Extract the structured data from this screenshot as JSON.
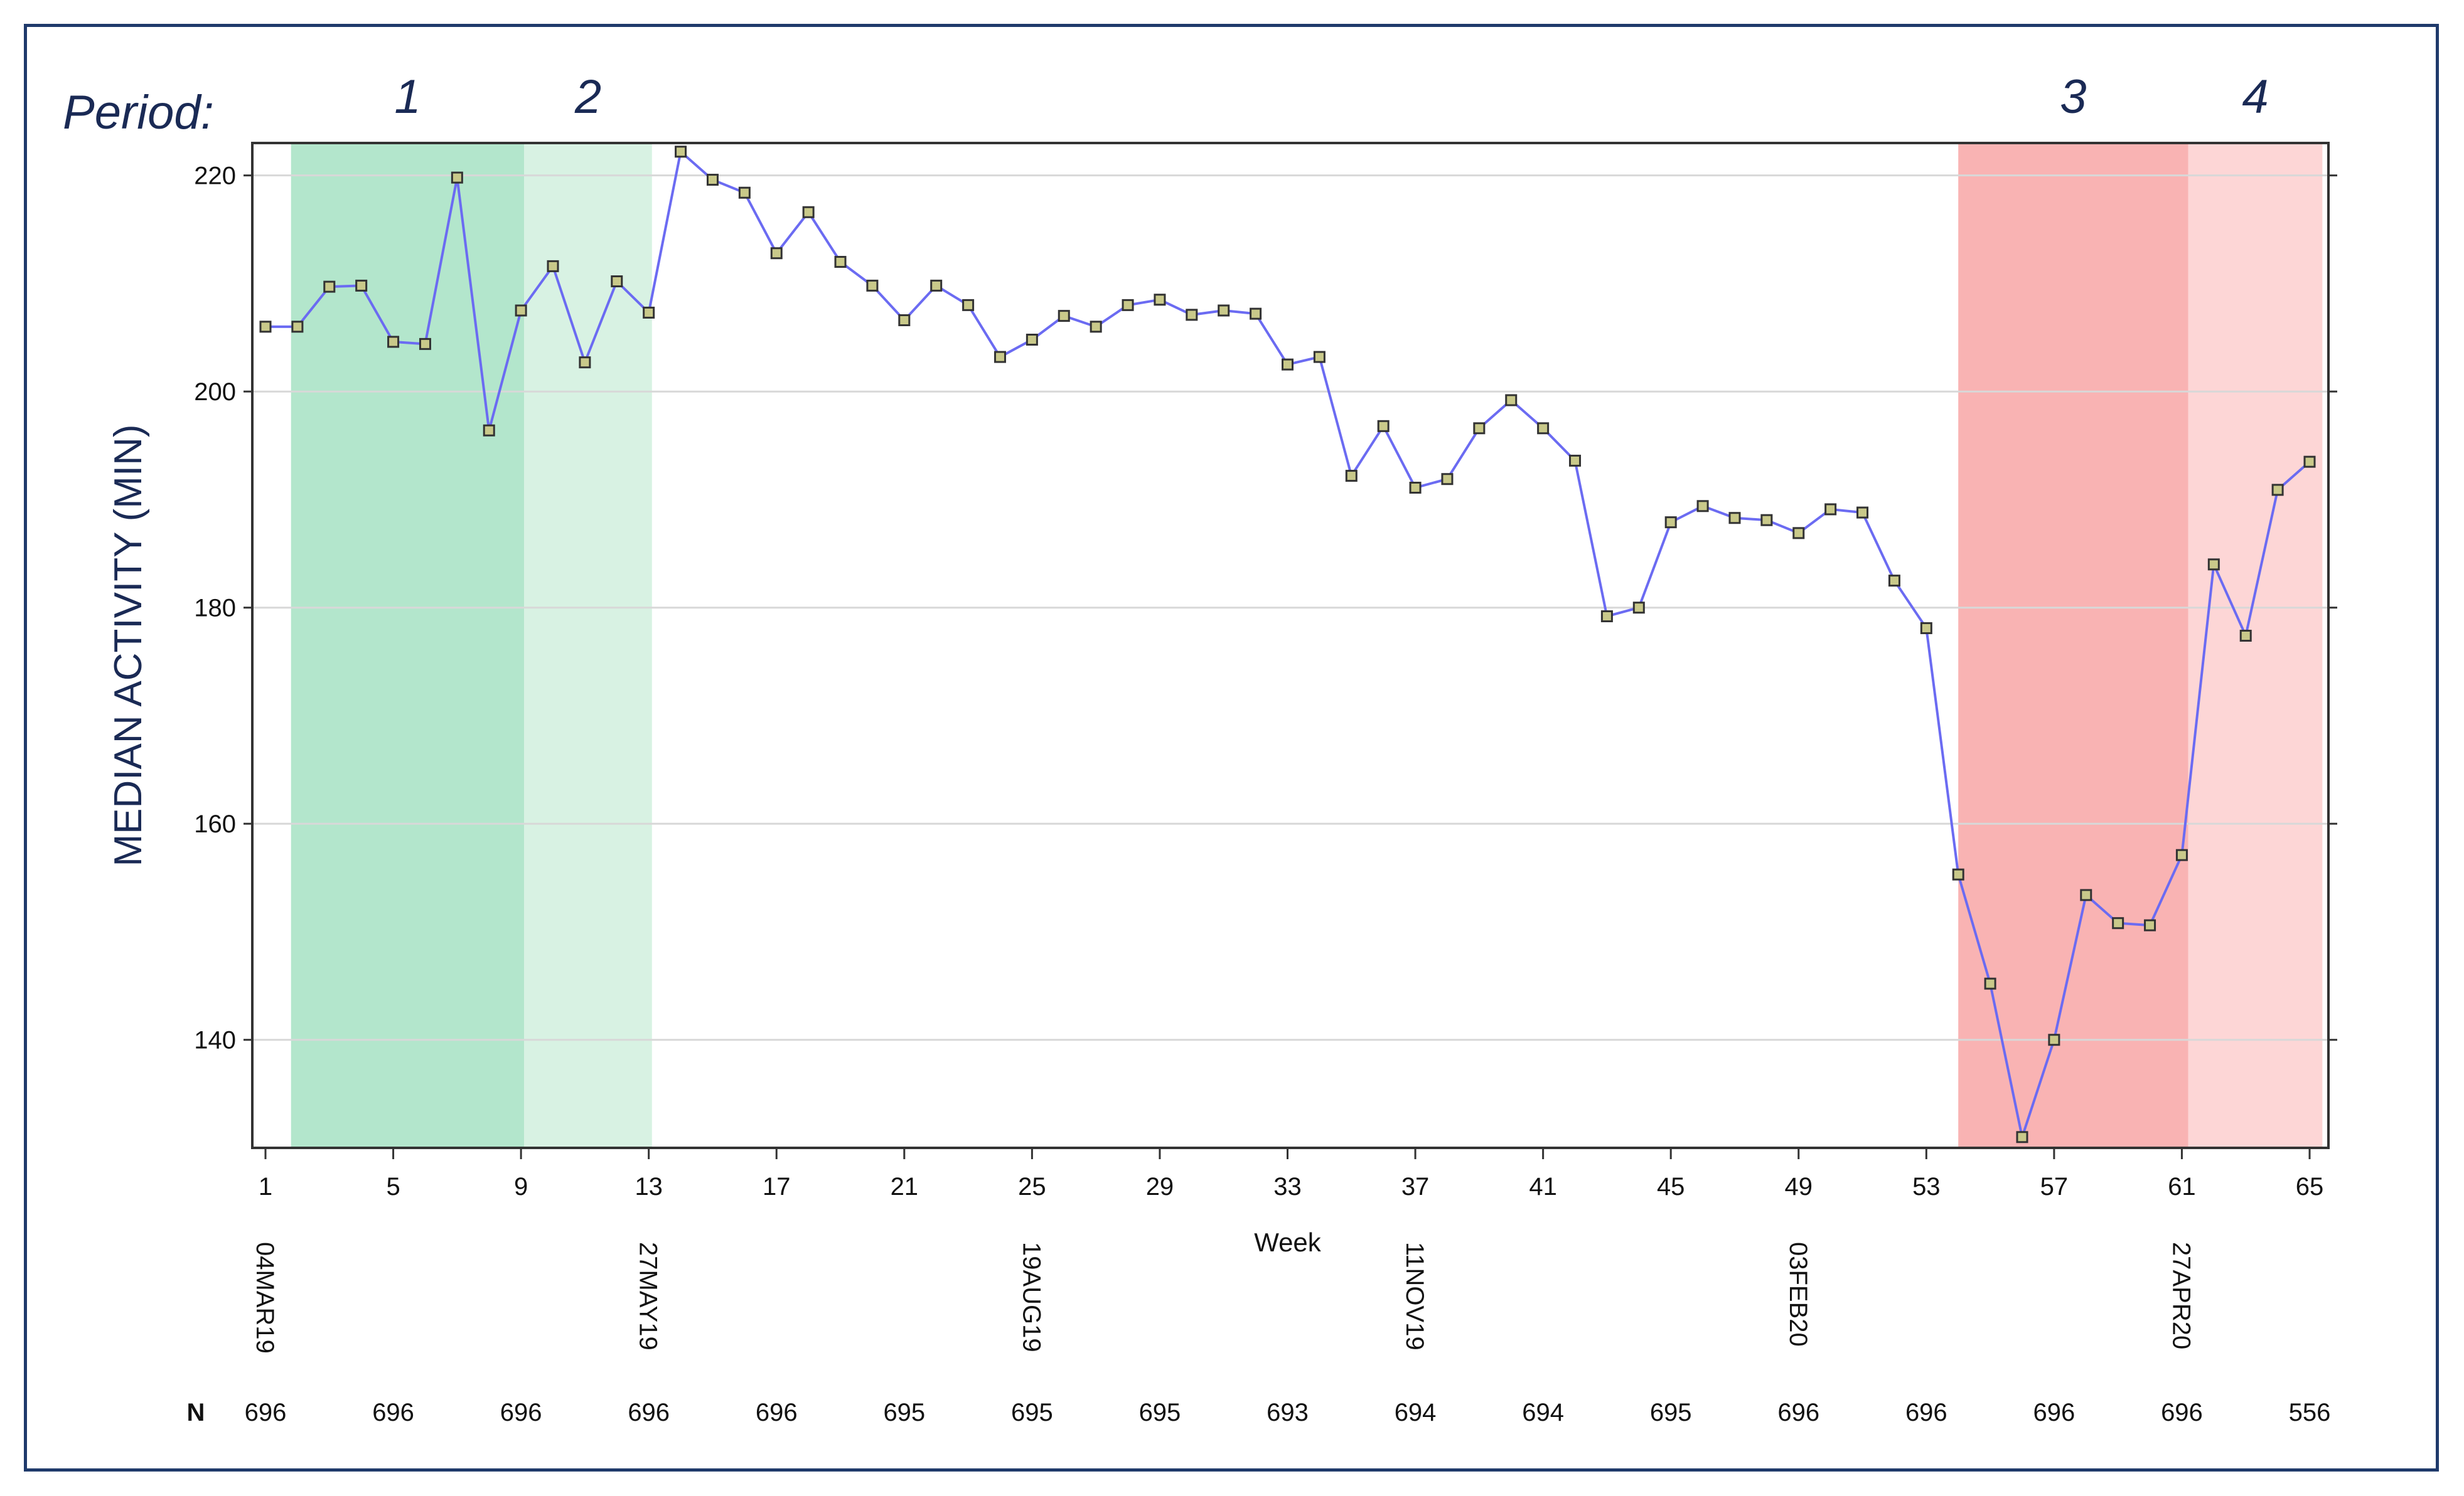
{
  "period_label": "Period:",
  "chart_data": {
    "type": "line",
    "xlabel": "Week",
    "ylabel": "MEDIAN ACTIVITY (MIN)",
    "xlim": [
      1,
      65
    ],
    "ylim": [
      130,
      223
    ],
    "x_ticks": [
      1,
      5,
      9,
      13,
      17,
      21,
      25,
      29,
      33,
      37,
      41,
      45,
      49,
      53,
      57,
      61,
      65
    ],
    "y_ticks": [
      140,
      160,
      180,
      200,
      220
    ],
    "grid": "horizontal",
    "line_color": "#6b6bf2",
    "x": [
      1,
      2,
      3,
      4,
      5,
      6,
      7,
      8,
      9,
      10,
      11,
      12,
      13,
      14,
      15,
      16,
      17,
      18,
      19,
      20,
      21,
      22,
      23,
      24,
      25,
      26,
      27,
      28,
      29,
      30,
      31,
      32,
      33,
      34,
      35,
      36,
      37,
      38,
      39,
      40,
      41,
      42,
      43,
      44,
      45,
      46,
      47,
      48,
      49,
      50,
      51,
      52,
      53,
      54,
      55,
      56,
      57,
      58,
      59,
      60,
      61,
      62,
      63,
      64,
      65
    ],
    "values": [
      206,
      206,
      209.7,
      209.8,
      204.6,
      204.4,
      219.8,
      196.4,
      207.5,
      211.6,
      202.7,
      210.2,
      207.3,
      222.2,
      219.6,
      218.4,
      212.8,
      216.6,
      212,
      209.8,
      206.6,
      209.8,
      208,
      203.2,
      204.8,
      207,
      206,
      208,
      208.5,
      207.1,
      207.5,
      207.2,
      202.5,
      203.2,
      192.2,
      196.8,
      191.1,
      191.9,
      196.6,
      199.2,
      196.6,
      193.6,
      179.2,
      180,
      187.9,
      189.4,
      188.3,
      188.1,
      186.9,
      189.1,
      188.8,
      182.5,
      178.1,
      155.3,
      145.2,
      131,
      140,
      153.4,
      150.8,
      150.6,
      157.1,
      184,
      177.4,
      190.9,
      193.5
    ],
    "periods": [
      {
        "label": "1",
        "from": 1.8,
        "to": 9.1,
        "color": "#b3e6cc"
      },
      {
        "label": "2",
        "from": 9.1,
        "to": 13.1,
        "color": "#d8f2e3"
      },
      {
        "label": "3",
        "from": 54,
        "to": 61.2,
        "color": "#f9b3b3"
      },
      {
        "label": "4",
        "from": 61.2,
        "to": 65.4,
        "color": "#fdd6d6"
      }
    ],
    "date_labels": [
      {
        "x": 1,
        "text": "04MAR19"
      },
      {
        "x": 13,
        "text": "27MAY19"
      },
      {
        "x": 25,
        "text": "19AUG19"
      },
      {
        "x": 37,
        "text": "11NOV19"
      },
      {
        "x": 49,
        "text": "03FEB20"
      },
      {
        "x": 61,
        "text": "27APR20"
      }
    ],
    "n_label": "N",
    "n_values": [
      {
        "x": 1,
        "text": "696"
      },
      {
        "x": 5,
        "text": "696"
      },
      {
        "x": 9,
        "text": "696"
      },
      {
        "x": 13,
        "text": "696"
      },
      {
        "x": 17,
        "text": "696"
      },
      {
        "x": 21,
        "text": "695"
      },
      {
        "x": 25,
        "text": "695"
      },
      {
        "x": 29,
        "text": "695"
      },
      {
        "x": 33,
        "text": "693"
      },
      {
        "x": 37,
        "text": "694"
      },
      {
        "x": 41,
        "text": "694"
      },
      {
        "x": 45,
        "text": "695"
      },
      {
        "x": 49,
        "text": "696"
      },
      {
        "x": 53,
        "text": "696"
      },
      {
        "x": 57,
        "text": "696"
      },
      {
        "x": 61,
        "text": "696"
      },
      {
        "x": 65,
        "text": "556"
      }
    ]
  }
}
